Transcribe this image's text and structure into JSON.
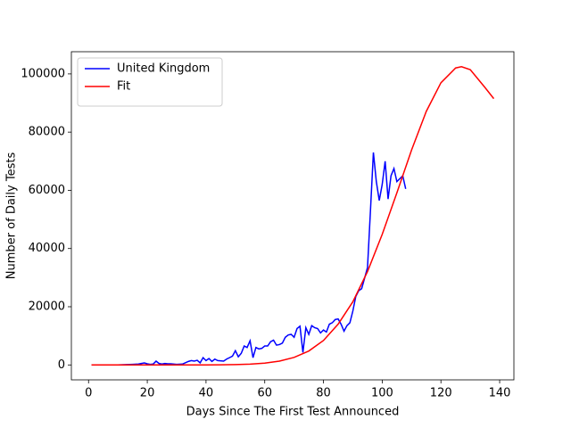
{
  "chart_data": {
    "type": "line",
    "xlabel": "Days Since The First Test Announced",
    "ylabel": "Number of Daily Tests",
    "xlim": [
      -5.85,
      144.85
    ],
    "ylim": [
      -5125,
      107625
    ],
    "xticks": [
      0,
      20,
      40,
      60,
      80,
      100,
      120,
      140
    ],
    "yticks": [
      0,
      20000,
      40000,
      60000,
      80000,
      100000
    ],
    "legend": "upper left",
    "series": [
      {
        "name": "United Kingdom",
        "color": "#0000ff",
        "x": [
          1,
          5,
          10,
          15,
          17,
          18,
          19,
          20,
          21,
          22,
          23,
          24,
          25,
          26,
          27,
          28,
          30,
          32,
          34,
          35,
          36,
          37,
          38,
          39,
          40,
          41,
          42,
          43,
          44,
          46,
          47,
          48,
          49,
          50,
          51,
          52,
          53,
          54,
          55,
          56,
          57,
          58,
          59,
          60,
          61,
          62,
          63,
          64,
          65,
          66,
          67,
          68,
          69,
          70,
          71,
          72,
          73,
          74,
          75,
          76,
          77,
          78,
          79,
          80,
          81,
          82,
          83,
          84,
          85,
          86,
          87,
          88,
          89,
          90,
          91,
          92,
          93,
          94,
          95,
          96,
          97,
          98,
          99,
          100,
          101,
          102,
          103,
          104,
          105,
          106,
          107,
          108
        ],
        "values": [
          0,
          0,
          0,
          200,
          300,
          500,
          700,
          400,
          200,
          300,
          1300,
          500,
          300,
          500,
          400,
          400,
          200,
          300,
          1200,
          1500,
          1300,
          1600,
          700,
          2500,
          1500,
          2200,
          1200,
          2000,
          1500,
          1300,
          2000,
          2500,
          3000,
          4900,
          2800,
          4000,
          6500,
          6000,
          8300,
          2500,
          6000,
          5500,
          5700,
          6500,
          6500,
          8000,
          8500,
          6800,
          7000,
          7500,
          9500,
          10300,
          10500,
          9500,
          12500,
          13300,
          4300,
          12800,
          10500,
          13500,
          12800,
          12500,
          11000,
          12000,
          11300,
          14000,
          14500,
          15600,
          15800,
          14000,
          11600,
          13500,
          14500,
          18500,
          23500,
          25500,
          26200,
          29800,
          33500,
          53000,
          73000,
          63000,
          56500,
          62000,
          70000,
          57000,
          65000,
          67500,
          63000,
          64000,
          65000,
          60500
        ]
      },
      {
        "name": "Fit",
        "color": "#ff0000",
        "x": [
          1,
          10,
          20,
          30,
          40,
          45,
          50,
          55,
          60,
          65,
          70,
          75,
          80,
          85,
          90,
          95,
          100,
          105,
          110,
          115,
          120,
          125,
          127,
          130,
          135,
          138
        ],
        "values": [
          0,
          0,
          0,
          2,
          19,
          50,
          124,
          288,
          630,
          1310,
          2590,
          4780,
          8410,
          14030,
          21700,
          32080,
          44850,
          59150,
          73840,
          87100,
          96960,
          102040,
          102500,
          101460,
          95320,
          91500
        ]
      }
    ]
  }
}
